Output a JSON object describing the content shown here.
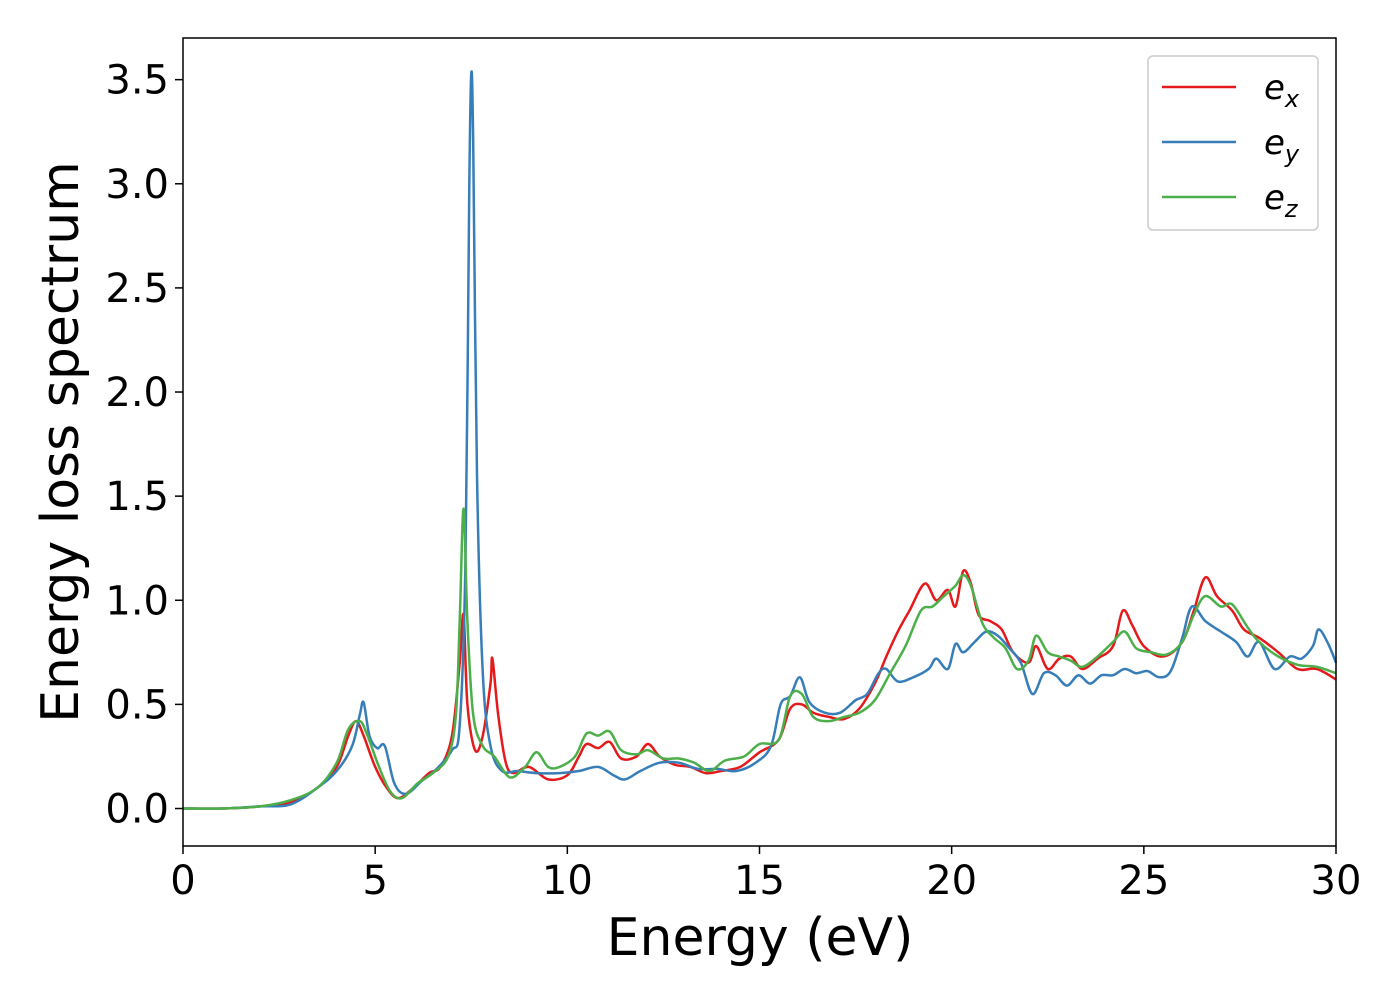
{
  "chart_data": {
    "type": "line",
    "xlabel": "Energy (eV)",
    "ylabel": "Energy loss spectrum",
    "xlim": [
      0,
      30
    ],
    "ylim": [
      -0.18,
      3.7
    ],
    "xticks": [
      0,
      5,
      10,
      15,
      20,
      25,
      30
    ],
    "xtick_labels": [
      "0",
      "5",
      "10",
      "15",
      "20",
      "25",
      "30"
    ],
    "yticks": [
      0.0,
      0.5,
      1.0,
      1.5,
      2.0,
      2.5,
      3.0,
      3.5
    ],
    "ytick_labels": [
      "0.0",
      "0.5",
      "1.0",
      "1.5",
      "2.0",
      "2.5",
      "3.0",
      "3.5"
    ],
    "grid": false,
    "legend_position": "top-right",
    "series": [
      {
        "name": "e_x",
        "label_base": "e",
        "label_sub": "x",
        "color": "#e41a1c",
        "points": [
          [
            0,
            0
          ],
          [
            1,
            0
          ],
          [
            2,
            0.01
          ],
          [
            2.8,
            0.03
          ],
          [
            3.5,
            0.1
          ],
          [
            4,
            0.2
          ],
          [
            4.3,
            0.35
          ],
          [
            4.5,
            0.42
          ],
          [
            4.7,
            0.35
          ],
          [
            5,
            0.2
          ],
          [
            5.3,
            0.1
          ],
          [
            5.6,
            0.05
          ],
          [
            6,
            0.1
          ],
          [
            6.4,
            0.17
          ],
          [
            6.7,
            0.2
          ],
          [
            7,
            0.35
          ],
          [
            7.2,
            0.7
          ],
          [
            7.3,
            0.93
          ],
          [
            7.4,
            0.5
          ],
          [
            7.6,
            0.28
          ],
          [
            7.8,
            0.35
          ],
          [
            8,
            0.6
          ],
          [
            8.05,
            0.72
          ],
          [
            8.2,
            0.45
          ],
          [
            8.4,
            0.22
          ],
          [
            8.6,
            0.17
          ],
          [
            9,
            0.2
          ],
          [
            9.5,
            0.14
          ],
          [
            10,
            0.16
          ],
          [
            10.3,
            0.25
          ],
          [
            10.5,
            0.31
          ],
          [
            10.8,
            0.29
          ],
          [
            11.1,
            0.32
          ],
          [
            11.4,
            0.24
          ],
          [
            11.8,
            0.25
          ],
          [
            12.1,
            0.31
          ],
          [
            12.4,
            0.25
          ],
          [
            12.8,
            0.21
          ],
          [
            13.2,
            0.2
          ],
          [
            13.6,
            0.17
          ],
          [
            14,
            0.18
          ],
          [
            14.5,
            0.2
          ],
          [
            15,
            0.27
          ],
          [
            15.5,
            0.33
          ],
          [
            15.8,
            0.48
          ],
          [
            16.1,
            0.5
          ],
          [
            16.4,
            0.46
          ],
          [
            16.8,
            0.44
          ],
          [
            17.2,
            0.43
          ],
          [
            17.6,
            0.48
          ],
          [
            18,
            0.6
          ],
          [
            18.3,
            0.73
          ],
          [
            18.6,
            0.85
          ],
          [
            18.9,
            0.95
          ],
          [
            19.3,
            1.08
          ],
          [
            19.6,
            1.0
          ],
          [
            19.9,
            1.05
          ],
          [
            20.1,
            0.97
          ],
          [
            20.3,
            1.14
          ],
          [
            20.5,
            1.08
          ],
          [
            20.7,
            0.93
          ],
          [
            21,
            0.9
          ],
          [
            21.3,
            0.86
          ],
          [
            21.6,
            0.75
          ],
          [
            22,
            0.7
          ],
          [
            22.2,
            0.78
          ],
          [
            22.5,
            0.67
          ],
          [
            22.8,
            0.72
          ],
          [
            23.1,
            0.73
          ],
          [
            23.4,
            0.67
          ],
          [
            23.8,
            0.72
          ],
          [
            24.2,
            0.78
          ],
          [
            24.45,
            0.95
          ],
          [
            24.7,
            0.88
          ],
          [
            25,
            0.78
          ],
          [
            25.5,
            0.73
          ],
          [
            26,
            0.8
          ],
          [
            26.3,
            0.95
          ],
          [
            26.6,
            1.11
          ],
          [
            26.9,
            1.02
          ],
          [
            27.3,
            0.95
          ],
          [
            27.6,
            0.86
          ],
          [
            28,
            0.82
          ],
          [
            28.5,
            0.75
          ],
          [
            29,
            0.67
          ],
          [
            29.5,
            0.67
          ],
          [
            30,
            0.62
          ]
        ]
      },
      {
        "name": "e_y",
        "label_base": "e",
        "label_sub": "y",
        "color": "#377eb8",
        "points": [
          [
            0,
            0
          ],
          [
            1,
            0
          ],
          [
            2,
            0.01
          ],
          [
            2.8,
            0.02
          ],
          [
            3.5,
            0.1
          ],
          [
            4,
            0.18
          ],
          [
            4.4,
            0.3
          ],
          [
            4.6,
            0.45
          ],
          [
            4.7,
            0.51
          ],
          [
            4.85,
            0.35
          ],
          [
            5.05,
            0.29
          ],
          [
            5.25,
            0.3
          ],
          [
            5.5,
            0.12
          ],
          [
            5.8,
            0.07
          ],
          [
            6.2,
            0.13
          ],
          [
            6.6,
            0.19
          ],
          [
            7,
            0.28
          ],
          [
            7.2,
            0.4
          ],
          [
            7.35,
            1.2
          ],
          [
            7.45,
            3.0
          ],
          [
            7.5,
            3.53
          ],
          [
            7.55,
            3.2
          ],
          [
            7.65,
            1.6
          ],
          [
            7.8,
            0.65
          ],
          [
            8,
            0.3
          ],
          [
            8.3,
            0.18
          ],
          [
            8.7,
            0.18
          ],
          [
            9.2,
            0.17
          ],
          [
            9.8,
            0.17
          ],
          [
            10.3,
            0.18
          ],
          [
            10.8,
            0.2
          ],
          [
            11.2,
            0.16
          ],
          [
            11.5,
            0.14
          ],
          [
            11.9,
            0.18
          ],
          [
            12.4,
            0.22
          ],
          [
            12.9,
            0.22
          ],
          [
            13.4,
            0.19
          ],
          [
            13.9,
            0.19
          ],
          [
            14.4,
            0.18
          ],
          [
            14.9,
            0.22
          ],
          [
            15.3,
            0.3
          ],
          [
            15.55,
            0.5
          ],
          [
            15.8,
            0.54
          ],
          [
            16.05,
            0.63
          ],
          [
            16.3,
            0.51
          ],
          [
            16.7,
            0.46
          ],
          [
            17.1,
            0.46
          ],
          [
            17.5,
            0.52
          ],
          [
            17.8,
            0.55
          ],
          [
            18.1,
            0.65
          ],
          [
            18.3,
            0.67
          ],
          [
            18.6,
            0.61
          ],
          [
            19,
            0.63
          ],
          [
            19.4,
            0.67
          ],
          [
            19.6,
            0.72
          ],
          [
            19.9,
            0.67
          ],
          [
            20.1,
            0.79
          ],
          [
            20.3,
            0.75
          ],
          [
            20.6,
            0.8
          ],
          [
            20.9,
            0.85
          ],
          [
            21.2,
            0.83
          ],
          [
            21.5,
            0.77
          ],
          [
            21.8,
            0.7
          ],
          [
            22.1,
            0.55
          ],
          [
            22.4,
            0.65
          ],
          [
            22.7,
            0.64
          ],
          [
            23,
            0.59
          ],
          [
            23.3,
            0.64
          ],
          [
            23.6,
            0.6
          ],
          [
            23.9,
            0.64
          ],
          [
            24.2,
            0.64
          ],
          [
            24.5,
            0.67
          ],
          [
            24.8,
            0.65
          ],
          [
            25.1,
            0.66
          ],
          [
            25.4,
            0.63
          ],
          [
            25.7,
            0.66
          ],
          [
            26,
            0.82
          ],
          [
            26.25,
            0.97
          ],
          [
            26.6,
            0.9
          ],
          [
            27,
            0.85
          ],
          [
            27.4,
            0.8
          ],
          [
            27.7,
            0.73
          ],
          [
            28,
            0.8
          ],
          [
            28.4,
            0.67
          ],
          [
            28.8,
            0.73
          ],
          [
            29.1,
            0.72
          ],
          [
            29.4,
            0.78
          ],
          [
            29.55,
            0.86
          ],
          [
            29.8,
            0.79
          ],
          [
            30,
            0.7
          ]
        ]
      },
      {
        "name": "e_z",
        "label_base": "e",
        "label_sub": "z",
        "color": "#4daf4a",
        "points": [
          [
            0,
            0
          ],
          [
            1,
            0
          ],
          [
            2,
            0.01
          ],
          [
            2.8,
            0.04
          ],
          [
            3.5,
            0.1
          ],
          [
            4,
            0.22
          ],
          [
            4.3,
            0.38
          ],
          [
            4.6,
            0.42
          ],
          [
            4.8,
            0.35
          ],
          [
            5.1,
            0.2
          ],
          [
            5.4,
            0.08
          ],
          [
            5.7,
            0.05
          ],
          [
            6.1,
            0.12
          ],
          [
            6.5,
            0.17
          ],
          [
            6.9,
            0.25
          ],
          [
            7.1,
            0.45
          ],
          [
            7.2,
            0.9
          ],
          [
            7.3,
            1.44
          ],
          [
            7.4,
            0.9
          ],
          [
            7.55,
            0.45
          ],
          [
            7.8,
            0.3
          ],
          [
            8.1,
            0.25
          ],
          [
            8.5,
            0.15
          ],
          [
            8.9,
            0.2
          ],
          [
            9.2,
            0.27
          ],
          [
            9.5,
            0.2
          ],
          [
            9.8,
            0.2
          ],
          [
            10.2,
            0.25
          ],
          [
            10.5,
            0.36
          ],
          [
            10.8,
            0.35
          ],
          [
            11.1,
            0.37
          ],
          [
            11.4,
            0.28
          ],
          [
            11.8,
            0.26
          ],
          [
            12.1,
            0.28
          ],
          [
            12.5,
            0.24
          ],
          [
            12.9,
            0.24
          ],
          [
            13.3,
            0.22
          ],
          [
            13.7,
            0.18
          ],
          [
            14.1,
            0.23
          ],
          [
            14.6,
            0.25
          ],
          [
            15,
            0.31
          ],
          [
            15.5,
            0.33
          ],
          [
            15.8,
            0.54
          ],
          [
            16.1,
            0.55
          ],
          [
            16.4,
            0.44
          ],
          [
            16.8,
            0.42
          ],
          [
            17.2,
            0.44
          ],
          [
            17.6,
            0.46
          ],
          [
            18,
            0.52
          ],
          [
            18.4,
            0.65
          ],
          [
            18.8,
            0.78
          ],
          [
            19.2,
            0.95
          ],
          [
            19.5,
            0.97
          ],
          [
            19.8,
            1.02
          ],
          [
            20.1,
            1.07
          ],
          [
            20.3,
            1.12
          ],
          [
            20.5,
            1.07
          ],
          [
            20.8,
            0.89
          ],
          [
            21.1,
            0.82
          ],
          [
            21.4,
            0.77
          ],
          [
            21.7,
            0.67
          ],
          [
            22,
            0.71
          ],
          [
            22.2,
            0.83
          ],
          [
            22.5,
            0.75
          ],
          [
            22.8,
            0.73
          ],
          [
            23.1,
            0.71
          ],
          [
            23.4,
            0.68
          ],
          [
            23.8,
            0.73
          ],
          [
            24.2,
            0.8
          ],
          [
            24.5,
            0.85
          ],
          [
            24.8,
            0.77
          ],
          [
            25.2,
            0.75
          ],
          [
            25.6,
            0.74
          ],
          [
            26,
            0.8
          ],
          [
            26.3,
            0.93
          ],
          [
            26.6,
            1.02
          ],
          [
            27,
            0.97
          ],
          [
            27.3,
            0.98
          ],
          [
            27.7,
            0.87
          ],
          [
            28,
            0.8
          ],
          [
            28.5,
            0.73
          ],
          [
            29,
            0.69
          ],
          [
            29.5,
            0.68
          ],
          [
            30,
            0.65
          ]
        ]
      }
    ]
  }
}
